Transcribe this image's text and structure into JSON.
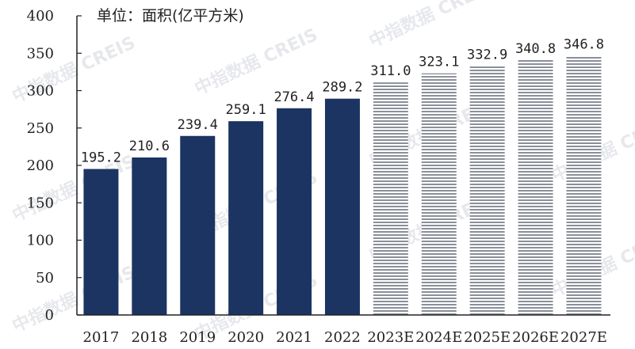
{
  "chart_data": {
    "type": "bar",
    "unit_label": "单位：面积(亿平方米)",
    "categories": [
      "2017",
      "2018",
      "2019",
      "2020",
      "2021",
      "2022",
      "2023E",
      "2024E",
      "2025E",
      "2026E",
      "2027E"
    ],
    "values": [
      195.2,
      210.6,
      239.4,
      259.1,
      276.4,
      289.2,
      311.0,
      323.1,
      332.9,
      340.8,
      346.8
    ],
    "value_labels": [
      "195.2",
      "210.6",
      "239.4",
      "259.1",
      "276.4",
      "289.2",
      "311.0",
      "323.1",
      "332.9",
      "340.8",
      "346.8"
    ],
    "forecast": [
      false,
      false,
      false,
      false,
      false,
      false,
      true,
      true,
      true,
      true,
      true
    ],
    "yticks": [
      "0",
      "50",
      "100",
      "150",
      "200",
      "250",
      "300",
      "350",
      "400"
    ],
    "ylim": [
      0,
      400
    ],
    "grid": false,
    "title": "",
    "xlabel": "",
    "ylabel": ""
  },
  "colors": {
    "actual_bar": "#1c3461",
    "forecast_stripe": "#8a8f99",
    "axis": "#222222"
  },
  "watermark": "中指数据 CREIS"
}
